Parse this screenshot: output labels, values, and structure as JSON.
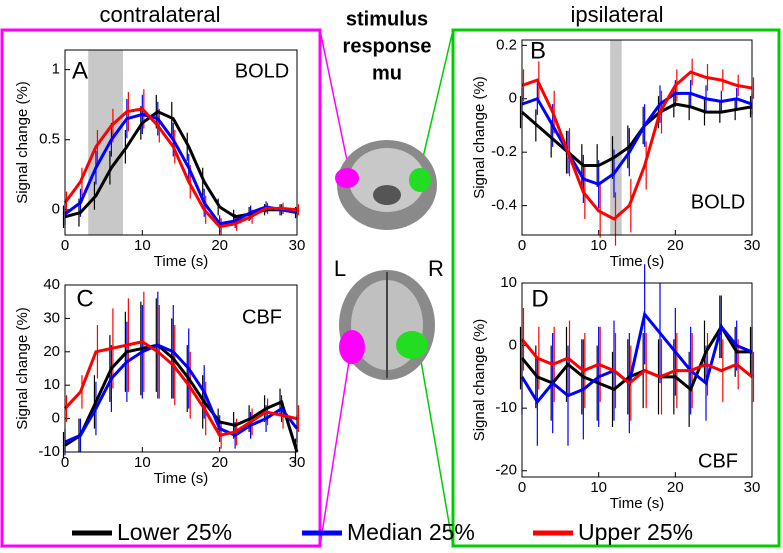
{
  "header": {
    "left": "contralateral",
    "right": "ipsilateral",
    "center": [
      "stimulus",
      "response",
      "mu"
    ]
  },
  "brain": {
    "left": "L",
    "right": "R"
  },
  "chart_data": [
    {
      "type": "line",
      "label": "A",
      "annotation": "BOLD",
      "x_label": "Time (s)",
      "y_label": "Signal change (%)",
      "x": [
        0,
        2,
        4,
        6,
        8,
        10,
        12,
        14,
        16,
        18,
        20,
        22,
        24,
        26,
        28,
        30
      ],
      "xlim": [
        0,
        30
      ],
      "xticks": [
        0,
        10,
        20,
        30
      ],
      "ylim": [
        -0.18,
        1.14
      ],
      "yticks": [
        0,
        0.5,
        1
      ],
      "shade": [
        3,
        7.5
      ],
      "shade_color": "#c8c8c8",
      "series": [
        {
          "name": "Lower 25%",
          "color": "#000000",
          "values": [
            -0.05,
            -0.02,
            0.1,
            0.3,
            0.45,
            0.62,
            0.7,
            0.65,
            0.45,
            0.2,
            0.02,
            -0.05,
            -0.03,
            0,
            0,
            -0.02
          ],
          "errors": [
            0.08,
            0.1,
            0.1,
            0.12,
            0.12,
            0.12,
            0.12,
            0.12,
            0.1,
            0.1,
            0.06,
            0.05,
            0.05,
            0.04,
            0.04,
            0.04
          ]
        },
        {
          "name": "Median 25%",
          "color": "#0000ff",
          "values": [
            -0.03,
            0.05,
            0.3,
            0.5,
            0.65,
            0.68,
            0.65,
            0.5,
            0.3,
            0.05,
            -0.1,
            -0.08,
            -0.02,
            0.02,
            0,
            -0.02
          ],
          "errors": [
            0.08,
            0.1,
            0.12,
            0.12,
            0.14,
            0.14,
            0.12,
            0.12,
            0.1,
            0.1,
            0.06,
            0.05,
            0.05,
            0.04,
            0.04,
            0.04
          ]
        },
        {
          "name": "Upper 25%",
          "color": "#ff0000",
          "values": [
            0.05,
            0.2,
            0.45,
            0.6,
            0.7,
            0.72,
            0.6,
            0.45,
            0.2,
            0,
            -0.12,
            -0.1,
            -0.05,
            0.01,
            0.01,
            0
          ],
          "errors": [
            0.08,
            0.1,
            0.12,
            0.12,
            0.14,
            0.14,
            0.12,
            0.12,
            0.12,
            0.1,
            0.06,
            0.05,
            0.05,
            0.04,
            0.04,
            0.04
          ]
        }
      ]
    },
    {
      "type": "line",
      "label": "B",
      "annotation": "BOLD",
      "x_label": "Time (s)",
      "y_label": "Signal change (%)",
      "x": [
        0,
        2,
        4,
        6,
        8,
        10,
        12,
        14,
        16,
        18,
        20,
        22,
        24,
        26,
        28,
        30
      ],
      "xlim": [
        0,
        30
      ],
      "xticks": [
        0,
        10,
        20,
        30
      ],
      "ylim": [
        -0.51,
        0.22
      ],
      "yticks": [
        -0.4,
        -0.2,
        0,
        0.2
      ],
      "shade": [
        11.5,
        13
      ],
      "shade_color": "#c8c8c8",
      "series": [
        {
          "name": "Lower 25%",
          "color": "#000000",
          "values": [
            -0.05,
            -0.1,
            -0.15,
            -0.2,
            -0.25,
            -0.25,
            -0.22,
            -0.18,
            -0.1,
            -0.05,
            -0.02,
            -0.03,
            -0.05,
            -0.05,
            -0.04,
            -0.03
          ],
          "errors": [
            0.06,
            0.06,
            0.07,
            0.08,
            0.08,
            0.08,
            0.08,
            0.08,
            0.07,
            0.06,
            0.05,
            0.05,
            0.05,
            0.04,
            0.04,
            0.04
          ]
        },
        {
          "name": "Median 25%",
          "color": "#0000ff",
          "values": [
            -0.02,
            0,
            -0.1,
            -0.2,
            -0.3,
            -0.32,
            -0.28,
            -0.2,
            -0.1,
            -0.02,
            0.02,
            0.02,
            0,
            -0.01,
            0,
            -0.02
          ],
          "errors": [
            0.06,
            0.06,
            0.08,
            0.08,
            0.09,
            0.09,
            0.09,
            0.09,
            0.08,
            0.07,
            0.05,
            0.05,
            0.05,
            0.04,
            0.04,
            0.04
          ]
        },
        {
          "name": "Upper 25%",
          "color": "#ff0000",
          "values": [
            0.05,
            0.07,
            -0.05,
            -0.2,
            -0.35,
            -0.42,
            -0.45,
            -0.4,
            -0.25,
            -0.05,
            0.05,
            0.1,
            0.08,
            0.07,
            0.05,
            0.04
          ],
          "errors": [
            0.06,
            0.07,
            0.08,
            0.09,
            0.1,
            0.1,
            0.1,
            0.1,
            0.09,
            0.08,
            0.06,
            0.05,
            0.05,
            0.04,
            0.04,
            0.04
          ]
        }
      ]
    },
    {
      "type": "line",
      "label": "C",
      "annotation": "CBF",
      "x_label": "Time (s)",
      "y_label": "Signal change (%)",
      "x": [
        0,
        2,
        4,
        6,
        8,
        10,
        12,
        14,
        16,
        18,
        20,
        22,
        24,
        26,
        28,
        30
      ],
      "xlim": [
        0,
        30
      ],
      "xticks": [
        0,
        10,
        20,
        30
      ],
      "ylim": [
        -10,
        40
      ],
      "yticks": [
        -10,
        0,
        10,
        20,
        30,
        40
      ],
      "series": [
        {
          "name": "Lower 25%",
          "color": "#000000",
          "values": [
            -8,
            -5,
            5,
            15,
            20,
            21,
            22,
            18,
            12,
            5,
            -1,
            -2,
            0,
            3,
            5,
            -10
          ],
          "errors": [
            4,
            5,
            8,
            10,
            12,
            14,
            14,
            12,
            10,
            8,
            4,
            4,
            4,
            4,
            4,
            4
          ]
        },
        {
          "name": "Median 25%",
          "color": "#0000ff",
          "values": [
            -7,
            -5,
            3,
            12,
            17,
            20,
            22,
            20,
            15,
            8,
            -3,
            -5,
            -2,
            0,
            3,
            -3
          ],
          "errors": [
            4,
            5,
            8,
            10,
            12,
            14,
            16,
            14,
            12,
            8,
            4,
            4,
            4,
            4,
            4,
            4
          ]
        },
        {
          "name": "Upper 25%",
          "color": "#ff0000",
          "values": [
            3,
            8,
            20,
            21,
            22,
            23,
            20,
            16,
            10,
            3,
            -5,
            -4,
            -1,
            2,
            1,
            0
          ],
          "errors": [
            4,
            5,
            8,
            12,
            14,
            15,
            14,
            12,
            10,
            8,
            4,
            4,
            4,
            4,
            4,
            4
          ]
        }
      ]
    },
    {
      "type": "line",
      "label": "D",
      "annotation": "CBF",
      "x_label": "Time (s)",
      "y_label": "Signal change (%)",
      "x": [
        0,
        2,
        4,
        6,
        8,
        10,
        12,
        14,
        16,
        18,
        20,
        22,
        24,
        26,
        28,
        30
      ],
      "xlim": [
        0,
        30
      ],
      "xticks": [
        0,
        10,
        20,
        30
      ],
      "ylim": [
        -21,
        10
      ],
      "yticks": [
        -20,
        -10,
        0,
        10
      ],
      "series": [
        {
          "name": "Lower 25%",
          "color": "#000000",
          "values": [
            -2,
            -5,
            -6,
            -3,
            -5,
            -6,
            -7,
            -5,
            -4,
            -5,
            -5,
            -7,
            -1,
            3,
            -1,
            -1
          ],
          "errors": [
            5,
            5,
            6,
            6,
            6,
            6,
            6,
            6,
            6,
            6,
            6,
            6,
            5,
            5,
            4,
            4
          ]
        },
        {
          "name": "Median 25%",
          "color": "#0000ff",
          "values": [
            -5,
            -9,
            -6,
            -8,
            -7,
            -5,
            -4,
            -6,
            5,
            2,
            -1,
            -4,
            -6,
            3,
            0,
            -1
          ],
          "errors": [
            6,
            7,
            8,
            8,
            8,
            8,
            8,
            8,
            8,
            8,
            7,
            7,
            6,
            5,
            4,
            4
          ]
        },
        {
          "name": "Upper 25%",
          "color": "#ff0000",
          "values": [
            1,
            -2,
            -3,
            -2,
            -4,
            -3,
            -4,
            -6,
            -4,
            -5,
            -4,
            -4,
            -3,
            -4,
            -3,
            -5
          ],
          "errors": [
            5,
            5,
            6,
            6,
            6,
            6,
            6,
            6,
            6,
            6,
            6,
            6,
            5,
            5,
            4,
            4
          ]
        }
      ]
    }
  ]
}
